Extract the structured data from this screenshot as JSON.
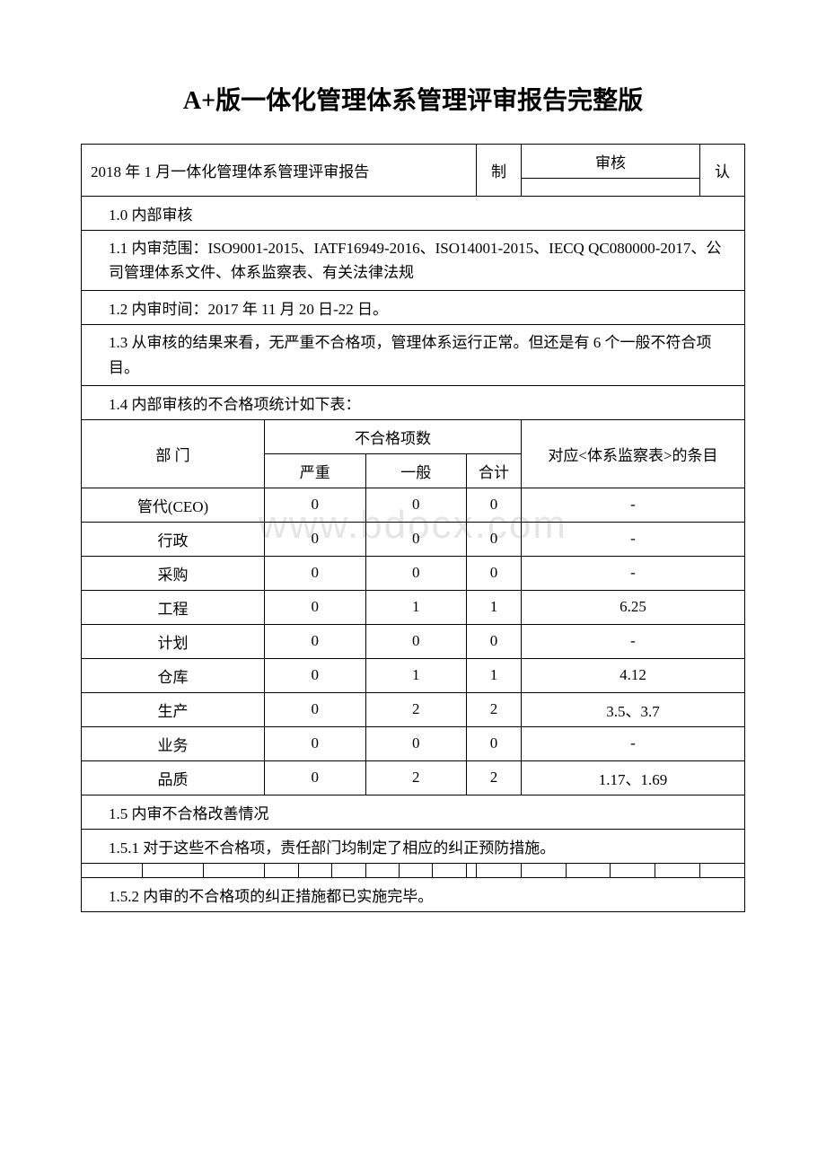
{
  "page_title": "A+版一体化管理体系管理评审报告完整版",
  "header": {
    "title": "2018 年 1 月一体化管理体系管理评审报告",
    "col_make": "制",
    "col_audit": "审核",
    "col_approve": "认"
  },
  "sections": {
    "s1_0": "1.0 内部审核",
    "s1_1": "1.1 内审范围：ISO9001-2015、IATF16949-2016、ISO14001-2015、IECQ QC080000-2017、公司管理体系文件、体系监察表、有关法律法规",
    "s1_2": "1.2 内审时间：2017 年 11 月 20 日-22 日。",
    "s1_3": "1.3 从审核的结果来看，无严重不合格项，管理体系运行正常。但还是有 6 个一般不符合项目。",
    "s1_4": "1.4 内部审核的不合格项统计如下表：",
    "s1_5": "1.5 内审不合格改善情况",
    "s1_5_1": "1.5.1 对于这些不合格项，责任部门均制定了相应的纠正预防措施。",
    "s1_5_2": "1.5.2 内审的不合格项的纠正措施都已实施完毕。"
  },
  "table": {
    "header": {
      "dept": "部 门",
      "nonconform": "不合格项数",
      "severe": "严重",
      "general": "一般",
      "total": "合计",
      "ref": "对应<体系监察表>的条目"
    },
    "rows": [
      {
        "dept": "管代(CEO)",
        "severe": "0",
        "general": "0",
        "total": "0",
        "ref": "-"
      },
      {
        "dept": "行政",
        "severe": "0",
        "general": "0",
        "total": "0",
        "ref": "-"
      },
      {
        "dept": "采购",
        "severe": "0",
        "general": "0",
        "total": "0",
        "ref": "-"
      },
      {
        "dept": "工程",
        "severe": "0",
        "general": "1",
        "total": "1",
        "ref": "6.25"
      },
      {
        "dept": "计划",
        "severe": "0",
        "general": "0",
        "total": "0",
        "ref": "-"
      },
      {
        "dept": "仓库",
        "severe": "0",
        "general": "1",
        "total": "1",
        "ref": "4.12"
      },
      {
        "dept": "生产",
        "severe": "0",
        "general": "2",
        "total": "2",
        "ref": "3.5、3.7"
      },
      {
        "dept": "业务",
        "severe": "0",
        "general": "0",
        "total": "0",
        "ref": "-"
      },
      {
        "dept": "品质",
        "severe": "0",
        "general": "2",
        "total": "2",
        "ref": "1.17、1.69"
      }
    ]
  },
  "watermark": "www.bdocx.com",
  "styling": {
    "page_bg": "#ffffff",
    "text_color": "#000000",
    "border_color": "#000000",
    "watermark_color": "#e5e5e5",
    "title_fontsize": 28,
    "body_fontsize": 17,
    "font_family": "SimSun"
  }
}
